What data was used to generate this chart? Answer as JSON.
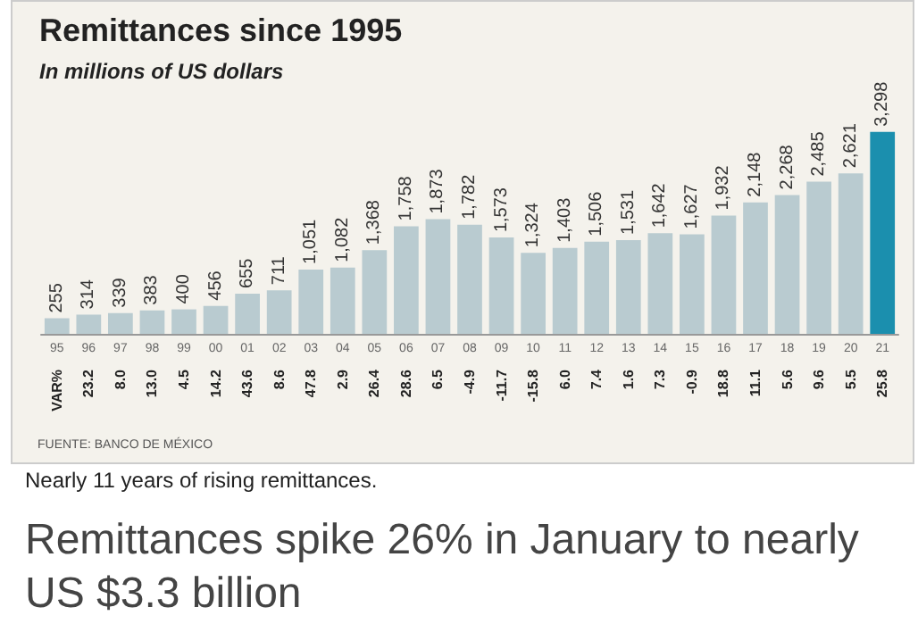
{
  "chart_data": {
    "type": "bar",
    "title": "Remittances since 1995",
    "subtitle": "In millions of US dollars",
    "categories": [
      "95",
      "96",
      "97",
      "98",
      "99",
      "00",
      "01",
      "02",
      "03",
      "04",
      "05",
      "06",
      "07",
      "08",
      "09",
      "10",
      "11",
      "12",
      "13",
      "14",
      "15",
      "16",
      "17",
      "18",
      "19",
      "20",
      "21"
    ],
    "values": [
      255,
      314,
      339,
      383,
      400,
      456,
      655,
      711,
      1051,
      1082,
      1368,
      1758,
      1873,
      1782,
      1573,
      1324,
      1403,
      1506,
      1531,
      1642,
      1627,
      1932,
      2148,
      2268,
      2485,
      2621,
      3298
    ],
    "value_labels": [
      "255",
      "314",
      "339",
      "383",
      "400",
      "456",
      "655",
      "711",
      "1,051",
      "1,082",
      "1,368",
      "1,758",
      "1,873",
      "1,782",
      "1,573",
      "1,324",
      "1,403",
      "1,506",
      "1,531",
      "1,642",
      "1,627",
      "1,932",
      "2,148",
      "2,268",
      "2,485",
      "2,621",
      "3,298"
    ],
    "colors": [
      "#b9cbd0",
      "#b9cbd0",
      "#b9cbd0",
      "#b9cbd0",
      "#b9cbd0",
      "#b9cbd0",
      "#b9cbd0",
      "#b9cbd0",
      "#b9cbd0",
      "#b9cbd0",
      "#b9cbd0",
      "#b9cbd0",
      "#b9cbd0",
      "#b9cbd0",
      "#b9cbd0",
      "#b9cbd0",
      "#b9cbd0",
      "#b9cbd0",
      "#b9cbd0",
      "#b9cbd0",
      "#b9cbd0",
      "#b9cbd0",
      "#b9cbd0",
      "#b9cbd0",
      "#b9cbd0",
      "#b9cbd0",
      "#1b8fae"
    ],
    "annotations": [
      "VAR%",
      "23.2",
      "8.0",
      "13.0",
      "4.5",
      "14.2",
      "43.6",
      "8.6",
      "47.8",
      "2.9",
      "26.4",
      "28.6",
      "6.5",
      "-4.9",
      "-11.7",
      "-15.8",
      "6.0",
      "7.4",
      "1.6",
      "7.3",
      "-0.9",
      "18.8",
      "11.1",
      "5.6",
      "9.6",
      "5.5",
      "25.8",
      "FUENTE: BANCO DE MÉXICO",
      "Nearly 11 years of rising remittances.",
      "Remittances spike 26% in January to nearly US $3.3 billion"
    ]
  }
}
